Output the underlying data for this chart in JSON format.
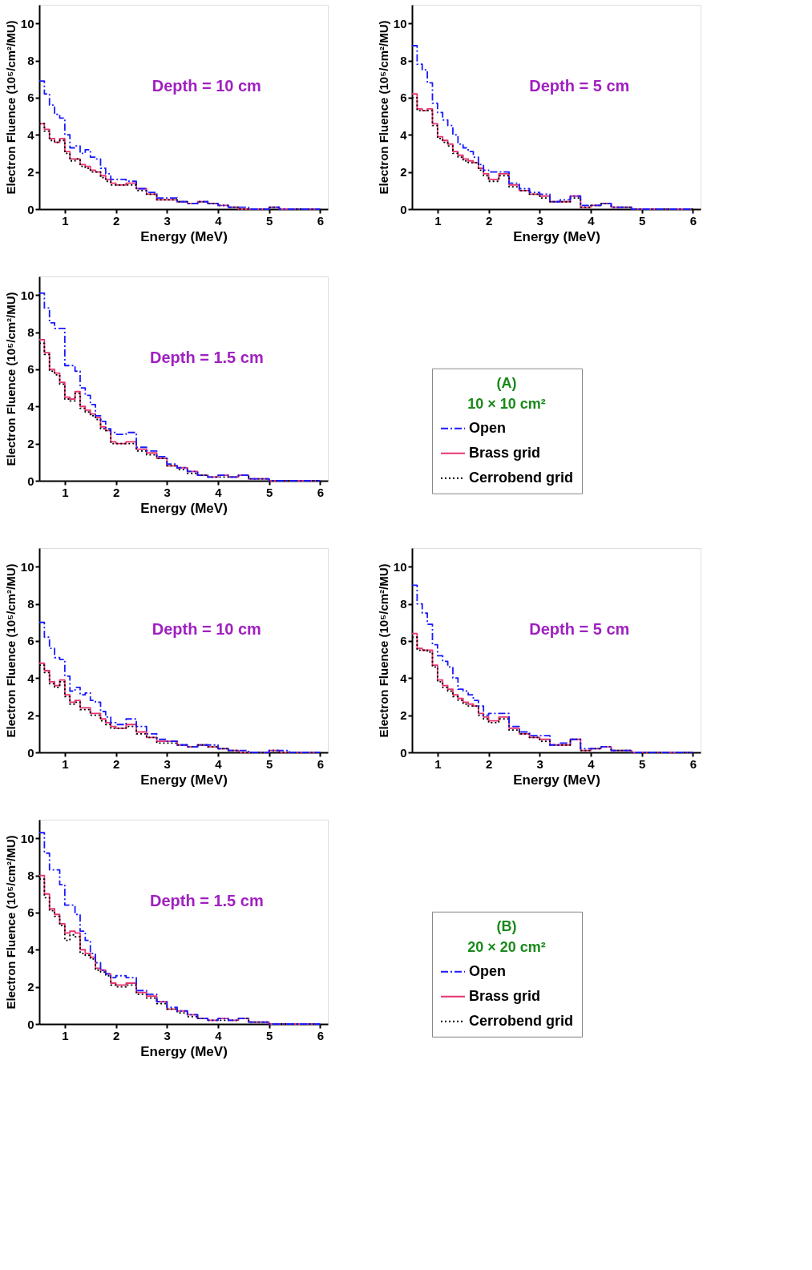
{
  "chart_data": [
    {
      "type": "step",
      "xlabel": "Energy (MeV)",
      "ylabel": "Electron Fluence (10⁵/cm²/MU)",
      "annotations": [
        "Depth = 10 cm"
      ],
      "xlim": [
        0.5,
        6.15
      ],
      "xticks": [
        1,
        2,
        3,
        4,
        5,
        6
      ],
      "ylim": [
        0,
        11
      ],
      "yticks": [
        0,
        2,
        4,
        6,
        8,
        10
      ],
      "grid": false,
      "legend": false,
      "marker": "none",
      "x": [
        0.5,
        0.6,
        0.7,
        0.8,
        0.9,
        1.0,
        1.1,
        1.2,
        1.3,
        1.4,
        1.5,
        1.6,
        1.7,
        1.8,
        1.9,
        2.0,
        2.2,
        2.4,
        2.6,
        2.8,
        3.0,
        3.2,
        3.4,
        3.6,
        3.8,
        4.0,
        4.2,
        4.4,
        4.6,
        4.8,
        5.0,
        5.2,
        5.4,
        5.6,
        5.8,
        6.0
      ],
      "series": [
        {
          "color": "#1a1aff",
          "line_style": "dashdot",
          "values": [
            6.9,
            6.2,
            5.6,
            5.1,
            4.9,
            4.0,
            3.3,
            3.4,
            3.0,
            3.2,
            2.8,
            2.7,
            2.2,
            1.9,
            1.6,
            1.6,
            1.5,
            1.1,
            0.9,
            0.6,
            0.6,
            0.4,
            0.3,
            0.4,
            0.3,
            0.2,
            0.1,
            0.1,
            0.0,
            0.0,
            0.1,
            0.0,
            0.0,
            0.0,
            0.0,
            0.0
          ]
        },
        {
          "color": "#e8336e",
          "line_style": "solid",
          "values": [
            4.6,
            4.3,
            3.8,
            3.6,
            3.8,
            3.1,
            2.7,
            2.7,
            2.4,
            2.3,
            2.1,
            2.0,
            1.8,
            1.6,
            1.4,
            1.3,
            1.4,
            1.1,
            0.8,
            0.5,
            0.5,
            0.4,
            0.3,
            0.4,
            0.3,
            0.2,
            0.1,
            0.0,
            0.0,
            0.0,
            0.1,
            0.0,
            0.0,
            0.0,
            0.0,
            0.0
          ]
        },
        {
          "color": "#000000",
          "line_style": "dotted",
          "values": [
            4.6,
            4.2,
            3.7,
            3.6,
            3.7,
            3.0,
            2.6,
            2.7,
            2.3,
            2.2,
            2.0,
            2.0,
            1.7,
            1.5,
            1.3,
            1.3,
            1.3,
            1.0,
            0.8,
            0.5,
            0.5,
            0.4,
            0.3,
            0.4,
            0.3,
            0.2,
            0.1,
            0.0,
            0.0,
            0.0,
            0.1,
            0.0,
            0.0,
            0.0,
            0.0,
            0.0
          ]
        }
      ]
    },
    {
      "type": "step",
      "xlabel": "Energy (MeV)",
      "ylabel": "Electron Fluence (10⁵/cm²/MU)",
      "annotations": [
        "Depth = 5 cm"
      ],
      "xlim": [
        0.5,
        6.15
      ],
      "xticks": [
        1,
        2,
        3,
        4,
        5,
        6
      ],
      "ylim": [
        0,
        11
      ],
      "yticks": [
        0,
        2,
        4,
        6,
        8,
        10
      ],
      "grid": false,
      "legend": false,
      "marker": "none",
      "x": [
        0.5,
        0.6,
        0.7,
        0.8,
        0.9,
        1.0,
        1.1,
        1.2,
        1.3,
        1.4,
        1.5,
        1.6,
        1.7,
        1.8,
        1.9,
        2.0,
        2.2,
        2.4,
        2.6,
        2.8,
        3.0,
        3.2,
        3.4,
        3.6,
        3.8,
        4.0,
        4.2,
        4.4,
        4.6,
        4.8,
        5.0,
        5.2,
        5.4,
        5.6,
        5.8,
        6.0
      ],
      "series": [
        {
          "color": "#1a1aff",
          "line_style": "dashdot",
          "values": [
            8.8,
            7.8,
            7.5,
            6.8,
            5.7,
            5.2,
            4.8,
            4.5,
            4.0,
            3.5,
            3.3,
            3.1,
            2.8,
            2.4,
            2.1,
            2.0,
            2.0,
            1.4,
            1.1,
            0.9,
            0.8,
            0.4,
            0.5,
            0.7,
            0.2,
            0.2,
            0.3,
            0.1,
            0.1,
            0.0,
            0.0,
            0.0,
            0.0,
            0.0,
            0.0,
            0.0
          ]
        },
        {
          "color": "#e8336e",
          "line_style": "solid",
          "values": [
            6.2,
            5.4,
            5.3,
            5.4,
            4.6,
            3.9,
            3.7,
            3.5,
            3.1,
            2.9,
            2.7,
            2.6,
            2.5,
            2.2,
            1.9,
            1.6,
            1.9,
            1.3,
            1.0,
            0.8,
            0.7,
            0.4,
            0.4,
            0.7,
            0.1,
            0.2,
            0.3,
            0.1,
            0.1,
            0.0,
            0.0,
            0.0,
            0.0,
            0.0,
            0.0,
            0.0
          ]
        },
        {
          "color": "#000000",
          "line_style": "dotted",
          "values": [
            6.0,
            5.3,
            5.3,
            5.3,
            4.5,
            3.8,
            3.6,
            3.4,
            3.0,
            2.8,
            2.6,
            2.5,
            2.5,
            2.1,
            1.8,
            1.5,
            1.8,
            1.2,
            1.0,
            0.8,
            0.6,
            0.4,
            0.4,
            0.6,
            0.1,
            0.2,
            0.3,
            0.1,
            0.1,
            0.0,
            0.0,
            0.0,
            0.0,
            0.0,
            0.0,
            0.0
          ]
        }
      ]
    },
    {
      "type": "step",
      "xlabel": "Energy (MeV)",
      "ylabel": "Electron Fluence (10⁵/cm²/MU)",
      "annotations": [
        "Depth = 1.5 cm"
      ],
      "legend_title": "(A)\n10 × 10 cm²",
      "xlim": [
        0.5,
        6.15
      ],
      "xticks": [
        1,
        2,
        3,
        4,
        5,
        6
      ],
      "ylim": [
        0,
        11
      ],
      "yticks": [
        0,
        2,
        4,
        6,
        8,
        10
      ],
      "grid": false,
      "legend": "right",
      "marker": "none",
      "x": [
        0.5,
        0.6,
        0.7,
        0.8,
        0.9,
        1.0,
        1.1,
        1.2,
        1.3,
        1.4,
        1.5,
        1.6,
        1.7,
        1.8,
        1.9,
        2.0,
        2.2,
        2.4,
        2.6,
        2.8,
        3.0,
        3.2,
        3.4,
        3.6,
        3.8,
        4.0,
        4.2,
        4.4,
        4.6,
        4.8,
        5.0,
        5.2,
        5.4,
        5.6,
        5.8,
        6.0
      ],
      "series": [
        {
          "name": "Open",
          "color": "#1a1aff",
          "line_style": "dashdot",
          "values": [
            10.1,
            9.3,
            8.5,
            8.2,
            8.2,
            6.2,
            6.2,
            5.9,
            5.0,
            4.6,
            4.1,
            3.5,
            3.2,
            2.8,
            2.6,
            2.5,
            2.6,
            1.8,
            1.6,
            1.3,
            0.9,
            0.7,
            0.5,
            0.3,
            0.2,
            0.3,
            0.2,
            0.3,
            0.1,
            0.1,
            0.0,
            0.0,
            0.0,
            0.0,
            0.0,
            0.0
          ]
        },
        {
          "name": "Brass grid",
          "color": "#e8336e",
          "line_style": "solid",
          "values": [
            7.6,
            6.9,
            6.0,
            5.8,
            5.3,
            4.5,
            4.4,
            4.8,
            4.0,
            3.8,
            3.6,
            3.4,
            2.9,
            2.7,
            2.1,
            2.0,
            2.1,
            1.7,
            1.5,
            1.2,
            0.8,
            0.7,
            0.5,
            0.3,
            0.2,
            0.3,
            0.2,
            0.3,
            0.1,
            0.1,
            0.0,
            0.0,
            0.0,
            0.0,
            0.0,
            0.0
          ]
        },
        {
          "name": "Cerrobend grid",
          "color": "#000000",
          "line_style": "dotted",
          "values": [
            7.4,
            6.8,
            5.9,
            5.7,
            5.2,
            4.4,
            4.3,
            4.7,
            3.9,
            3.7,
            3.5,
            3.3,
            2.8,
            2.7,
            2.0,
            2.0,
            2.0,
            1.6,
            1.4,
            1.2,
            0.8,
            0.6,
            0.4,
            0.3,
            0.2,
            0.2,
            0.2,
            0.3,
            0.1,
            0.1,
            0.0,
            0.0,
            0.0,
            0.0,
            0.0,
            0.0
          ]
        }
      ]
    },
    {
      "type": "step",
      "xlabel": "Energy (MeV)",
      "ylabel": "Electron Fluence (10⁵/cm²/MU)",
      "annotations": [
        "Depth = 10 cm"
      ],
      "xlim": [
        0.5,
        6.15
      ],
      "xticks": [
        1,
        2,
        3,
        4,
        5,
        6
      ],
      "ylim": [
        0,
        11
      ],
      "yticks": [
        0,
        2,
        4,
        6,
        8,
        10
      ],
      "grid": false,
      "legend": false,
      "marker": "none",
      "x": [
        0.5,
        0.6,
        0.7,
        0.8,
        0.9,
        1.0,
        1.1,
        1.2,
        1.3,
        1.4,
        1.5,
        1.6,
        1.7,
        1.8,
        1.9,
        2.0,
        2.2,
        2.4,
        2.6,
        2.8,
        3.0,
        3.2,
        3.4,
        3.6,
        3.8,
        4.0,
        4.2,
        4.4,
        4.6,
        4.8,
        5.0,
        5.2,
        5.4,
        5.6,
        5.8,
        6.0
      ],
      "series": [
        {
          "color": "#1a1aff",
          "line_style": "dashdot",
          "values": [
            7.0,
            6.2,
            5.6,
            5.1,
            5.0,
            4.1,
            3.3,
            3.5,
            3.1,
            3.2,
            2.8,
            2.7,
            2.2,
            1.9,
            1.6,
            1.5,
            1.8,
            1.4,
            1.0,
            0.7,
            0.6,
            0.4,
            0.3,
            0.4,
            0.4,
            0.2,
            0.1,
            0.1,
            0.0,
            0.0,
            0.1,
            0.1,
            0.0,
            0.0,
            0.0,
            0.0
          ]
        },
        {
          "color": "#e8336e",
          "line_style": "solid",
          "values": [
            4.8,
            4.4,
            3.8,
            3.6,
            3.9,
            3.1,
            2.7,
            2.8,
            2.4,
            2.4,
            2.1,
            2.1,
            1.8,
            1.6,
            1.4,
            1.3,
            1.5,
            1.1,
            0.8,
            0.6,
            0.6,
            0.4,
            0.3,
            0.4,
            0.3,
            0.2,
            0.1,
            0.0,
            0.0,
            0.0,
            0.1,
            0.0,
            0.0,
            0.0,
            0.0,
            0.0
          ]
        },
        {
          "color": "#000000",
          "line_style": "dotted",
          "values": [
            4.7,
            4.3,
            3.7,
            3.5,
            3.8,
            3.0,
            2.6,
            2.7,
            2.3,
            2.3,
            2.0,
            2.0,
            1.7,
            1.5,
            1.3,
            1.3,
            1.4,
            1.0,
            0.8,
            0.5,
            0.5,
            0.4,
            0.3,
            0.4,
            0.3,
            0.2,
            0.1,
            0.0,
            0.0,
            0.0,
            0.1,
            0.0,
            0.0,
            0.0,
            0.0,
            0.0
          ]
        }
      ]
    },
    {
      "type": "step",
      "xlabel": "Energy (MeV)",
      "ylabel": "Electron Fluence (10⁵/cm²/MU)",
      "annotations": [
        "Depth = 5 cm"
      ],
      "xlim": [
        0.5,
        6.15
      ],
      "xticks": [
        1,
        2,
        3,
        4,
        5,
        6
      ],
      "ylim": [
        0,
        11
      ],
      "yticks": [
        0,
        2,
        4,
        6,
        8,
        10
      ],
      "grid": false,
      "legend": false,
      "marker": "none",
      "x": [
        0.5,
        0.6,
        0.7,
        0.8,
        0.9,
        1.0,
        1.1,
        1.2,
        1.3,
        1.4,
        1.5,
        1.6,
        1.7,
        1.8,
        1.9,
        2.0,
        2.2,
        2.4,
        2.6,
        2.8,
        3.0,
        3.2,
        3.4,
        3.6,
        3.8,
        4.0,
        4.2,
        4.4,
        4.6,
        4.8,
        5.0,
        5.2,
        5.4,
        5.6,
        5.8,
        6.0
      ],
      "series": [
        {
          "color": "#1a1aff",
          "line_style": "dashdot",
          "values": [
            9.0,
            8.0,
            7.5,
            6.9,
            5.8,
            5.2,
            4.9,
            4.6,
            4.0,
            3.4,
            3.3,
            3.1,
            2.8,
            2.5,
            2.0,
            2.1,
            2.1,
            1.4,
            1.1,
            0.9,
            0.9,
            0.4,
            0.5,
            0.7,
            0.2,
            0.2,
            0.3,
            0.1,
            0.1,
            0.0,
            0.0,
            0.0,
            0.0,
            0.0,
            0.0,
            0.0
          ]
        },
        {
          "color": "#e8336e",
          "line_style": "solid",
          "values": [
            6.4,
            5.6,
            5.5,
            5.5,
            4.7,
            3.9,
            3.6,
            3.4,
            3.1,
            2.9,
            2.7,
            2.6,
            2.5,
            2.1,
            1.9,
            1.7,
            1.9,
            1.3,
            1.0,
            0.8,
            0.7,
            0.4,
            0.4,
            0.7,
            0.1,
            0.2,
            0.3,
            0.1,
            0.1,
            0.0,
            0.0,
            0.0,
            0.0,
            0.0,
            0.0,
            0.0
          ]
        },
        {
          "color": "#000000",
          "line_style": "dotted",
          "values": [
            6.2,
            5.5,
            5.5,
            5.4,
            4.6,
            3.8,
            3.5,
            3.3,
            3.0,
            2.8,
            2.6,
            2.5,
            2.5,
            2.0,
            1.8,
            1.6,
            1.8,
            1.2,
            1.0,
            0.8,
            0.6,
            0.4,
            0.4,
            0.7,
            0.1,
            0.2,
            0.3,
            0.1,
            0.1,
            0.0,
            0.0,
            0.0,
            0.0,
            0.0,
            0.0,
            0.0
          ]
        }
      ]
    },
    {
      "type": "step",
      "xlabel": "Energy (MeV)",
      "ylabel": "Electron Fluence (10⁵/cm²/MU)",
      "annotations": [
        "Depth = 1.5 cm"
      ],
      "legend_title": "(B)\n20 × 20 cm²",
      "xlim": [
        0.5,
        6.15
      ],
      "xticks": [
        1,
        2,
        3,
        4,
        5,
        6
      ],
      "ylim": [
        0,
        11
      ],
      "yticks": [
        0,
        2,
        4,
        6,
        8,
        10
      ],
      "grid": false,
      "legend": "right",
      "marker": "none",
      "x": [
        0.5,
        0.6,
        0.7,
        0.8,
        0.9,
        1.0,
        1.1,
        1.2,
        1.3,
        1.4,
        1.5,
        1.6,
        1.7,
        1.8,
        1.9,
        2.0,
        2.2,
        2.4,
        2.6,
        2.8,
        3.0,
        3.2,
        3.4,
        3.6,
        3.8,
        4.0,
        4.2,
        4.4,
        4.6,
        4.8,
        5.0,
        5.2,
        5.4,
        5.6,
        5.8,
        6.0
      ],
      "series": [
        {
          "name": "Open",
          "color": "#1a1aff",
          "line_style": "dashdot",
          "values": [
            10.3,
            9.2,
            8.3,
            8.3,
            7.5,
            6.4,
            6.4,
            5.9,
            5.0,
            4.5,
            3.8,
            3.3,
            2.9,
            2.7,
            2.5,
            2.6,
            2.5,
            1.8,
            1.6,
            1.2,
            0.9,
            0.7,
            0.5,
            0.3,
            0.2,
            0.3,
            0.2,
            0.3,
            0.1,
            0.1,
            0.0,
            0.0,
            0.0,
            0.0,
            0.0,
            0.0
          ]
        },
        {
          "name": "Brass grid",
          "color": "#e8336e",
          "line_style": "solid",
          "values": [
            8.0,
            7.0,
            6.2,
            5.9,
            5.4,
            4.9,
            5.0,
            4.9,
            4.0,
            3.8,
            3.6,
            3.0,
            2.9,
            2.7,
            2.2,
            2.1,
            2.2,
            1.7,
            1.5,
            1.2,
            0.8,
            0.7,
            0.5,
            0.3,
            0.2,
            0.3,
            0.2,
            0.3,
            0.1,
            0.1,
            0.0,
            0.0,
            0.0,
            0.0,
            0.0,
            0.0
          ]
        },
        {
          "name": "Cerrobend grid",
          "color": "#000000",
          "line_style": "dotted",
          "values": [
            7.8,
            6.8,
            6.1,
            5.8,
            5.3,
            4.5,
            4.8,
            4.7,
            3.8,
            3.7,
            3.5,
            2.9,
            2.8,
            2.6,
            2.1,
            2.0,
            2.1,
            1.6,
            1.4,
            1.1,
            0.8,
            0.6,
            0.4,
            0.3,
            0.2,
            0.2,
            0.2,
            0.3,
            0.1,
            0.1,
            0.0,
            0.0,
            0.0,
            0.0,
            0.0,
            0.0
          ]
        }
      ]
    }
  ]
}
